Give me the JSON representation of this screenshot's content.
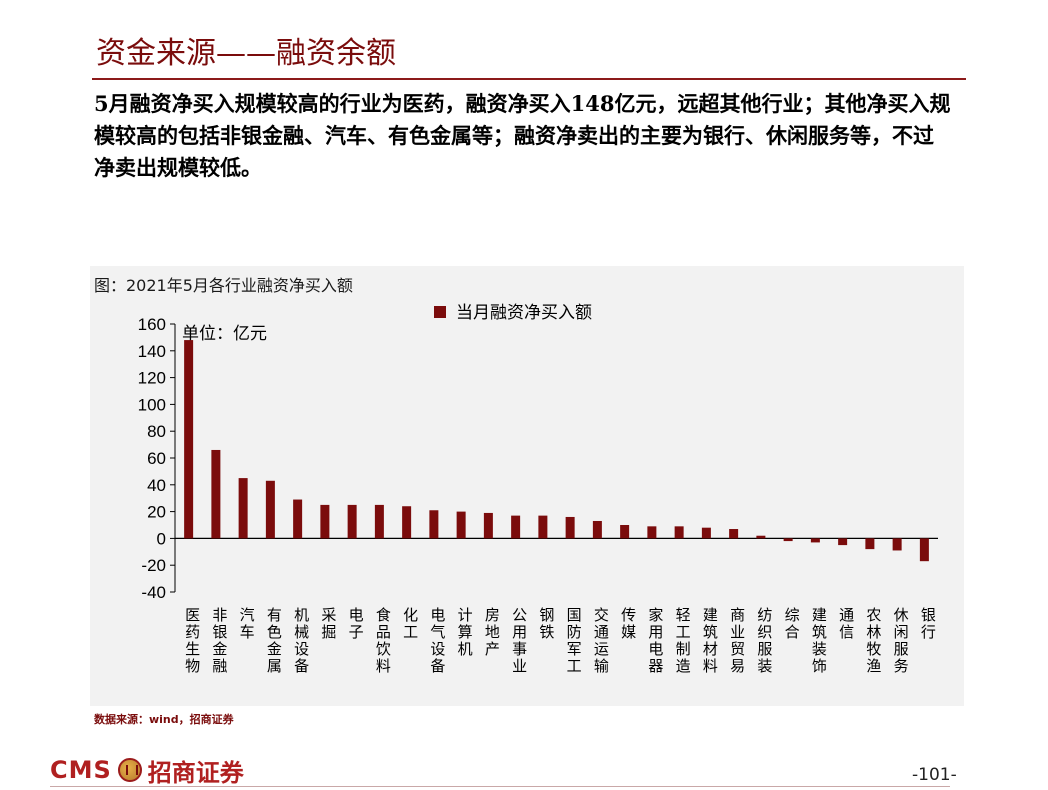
{
  "header": {
    "title": "资金来源——融资余额",
    "description": "5月融资净买入规模较高的行业为医药，融资净买入148亿元，远超其他行业；其他净买入规模较高的包括非银金融、汽车、有色金属等；融资净卖出的主要为银行、休闲服务等，不过净卖出规模较低。"
  },
  "chart_caption": "图：2021年5月各行业融资净买入额",
  "chart_data": {
    "type": "bar",
    "title": "",
    "unit_label": "单位：亿元",
    "legend": {
      "position": "top-center",
      "entries": [
        "当月融资净买入额"
      ]
    },
    "categories": [
      "医药生物",
      "非银金融",
      "汽车",
      "有色金属",
      "机械设备",
      "采掘",
      "电子",
      "食品饮料",
      "化工",
      "电气设备",
      "计算机",
      "房地产",
      "公用事业",
      "钢铁",
      "国防军工",
      "交通运输",
      "传媒",
      "家用电器",
      "轻工制造",
      "建筑材料",
      "商业贸易",
      "纺织服装",
      "综合",
      "建筑装饰",
      "通信",
      "农林牧渔",
      "休闲服务",
      "银行"
    ],
    "series": [
      {
        "name": "当月融资净买入额",
        "values": [
          148,
          66,
          45,
          43,
          29,
          25,
          25,
          25,
          24,
          21,
          20,
          19,
          17,
          17,
          16,
          13,
          10,
          9,
          9,
          8,
          7,
          2,
          -2,
          -3,
          -5,
          -8,
          -9,
          -17
        ]
      }
    ],
    "ylim": [
      -40,
      160
    ],
    "yticks": [
      160,
      140,
      120,
      100,
      80,
      60,
      40,
      20,
      0,
      -20,
      -40
    ],
    "bar_color": "#7b0c0c",
    "grid": false
  },
  "source": "数据来源：wind，招商证券",
  "footer": {
    "logo_text": "CMS",
    "company": "招商证券",
    "page_number": "-101-"
  }
}
